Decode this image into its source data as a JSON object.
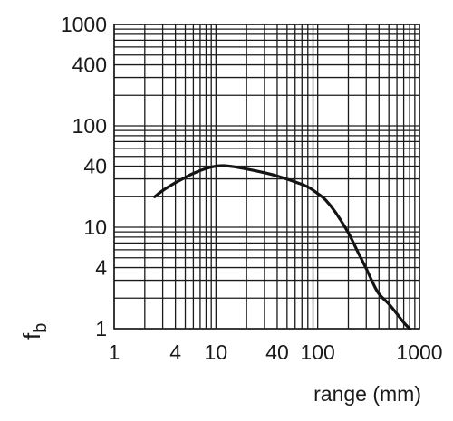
{
  "chart_data": {
    "type": "line",
    "title": "",
    "xlabel": "range (mm)",
    "ylabel_main": "f",
    "ylabel_sub": "b",
    "x_scale": "log",
    "y_scale": "log",
    "xlim": [
      1,
      1000
    ],
    "ylim": [
      1,
      1000
    ],
    "grid": true,
    "x_ticks": [
      {
        "value": 1,
        "label": "1"
      },
      {
        "value": 4,
        "label": "4"
      },
      {
        "value": 10,
        "label": "10"
      },
      {
        "value": 40,
        "label": "40"
      },
      {
        "value": 100,
        "label": "100"
      },
      {
        "value": 1000,
        "label": "1000"
      }
    ],
    "y_ticks": [
      {
        "value": 1,
        "label": "1"
      },
      {
        "value": 4,
        "label": "4"
      },
      {
        "value": 10,
        "label": "10"
      },
      {
        "value": 40,
        "label": "40"
      },
      {
        "value": 100,
        "label": "100"
      },
      {
        "value": 400,
        "label": "400"
      },
      {
        "value": 1000,
        "label": "1000"
      }
    ],
    "x_grid": [
      1,
      2,
      3,
      4,
      5,
      6,
      7,
      8,
      9,
      10,
      20,
      30,
      40,
      50,
      60,
      70,
      80,
      90,
      100,
      200,
      300,
      400,
      500,
      600,
      700,
      800,
      900,
      1000
    ],
    "y_grid": [
      1,
      2,
      3,
      4,
      5,
      6,
      7,
      8,
      9,
      10,
      20,
      30,
      40,
      50,
      60,
      70,
      80,
      90,
      100,
      200,
      300,
      400,
      500,
      600,
      700,
      800,
      900,
      1000
    ],
    "series": [
      {
        "x": [
          2.5,
          3,
          4,
          5,
          6,
          8,
          10,
          12,
          15,
          20,
          30,
          40,
          60,
          80,
          100,
          120,
          150,
          200,
          250,
          300,
          350,
          400,
          500,
          600,
          700,
          800
        ],
        "y": [
          20,
          23,
          27.5,
          31,
          34,
          38,
          40,
          40.5,
          39.5,
          37.5,
          34.5,
          32,
          28,
          25,
          21.5,
          18.5,
          14,
          8.8,
          5.6,
          3.9,
          2.8,
          2.2,
          1.75,
          1.4,
          1.15,
          1
        ]
      }
    ],
    "colors": {
      "line": "#141414",
      "grid": "#1a1a1a",
      "background": "#ffffff"
    }
  }
}
